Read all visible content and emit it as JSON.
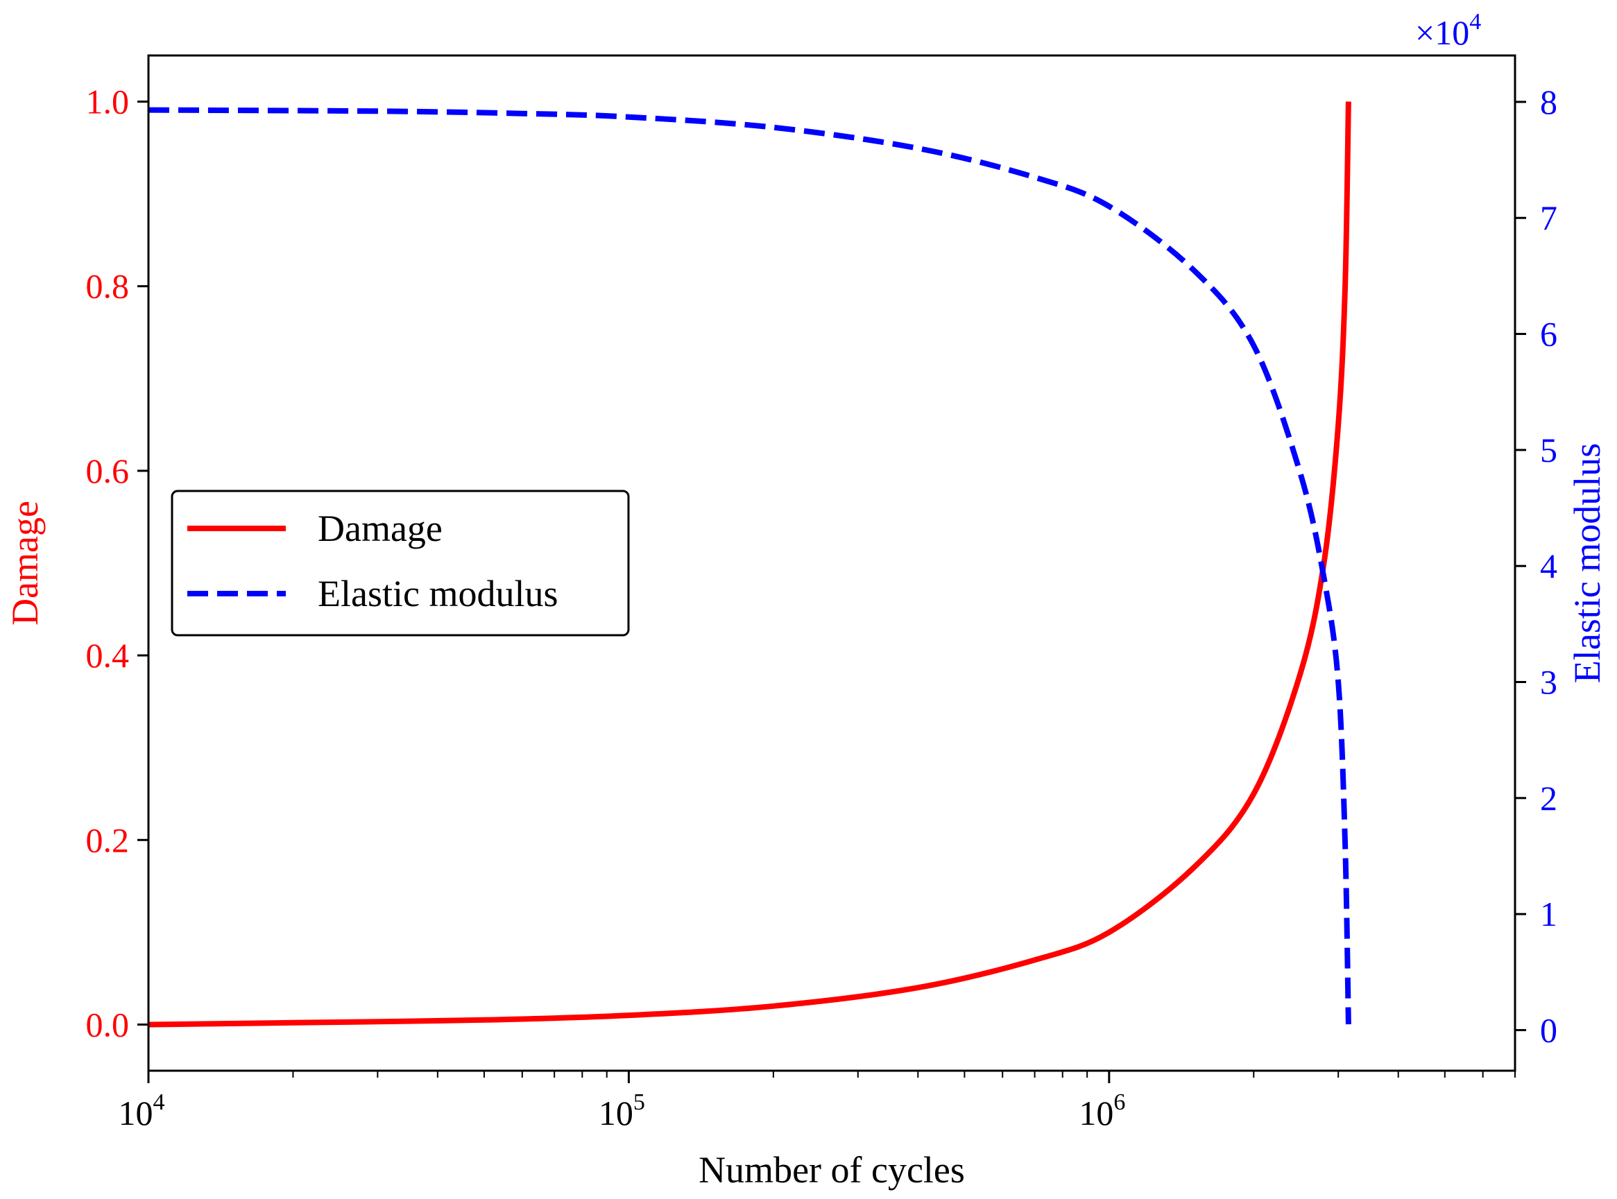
{
  "chart_data": {
    "type": "line",
    "title": "",
    "xlabel": "Number of cycles",
    "ylabel_left": "Damage",
    "ylabel_right": "Elastic modulus",
    "xscale": "log",
    "xlim": [
      10000,
      7000000
    ],
    "ylim_left": [
      -0.05,
      1.05
    ],
    "ylim_right": [
      -0.35,
      8.4
    ],
    "right_axis_multiplier": "×10",
    "right_axis_multiplier_exponent": "4",
    "x_major_ticks": [
      {
        "base": "10",
        "exp": "4",
        "value": 10000
      },
      {
        "base": "10",
        "exp": "5",
        "value": 100000
      },
      {
        "base": "10",
        "exp": "6",
        "value": 1000000
      }
    ],
    "y_left_ticks": [
      "0.0",
      "0.2",
      "0.4",
      "0.6",
      "0.8",
      "1.0"
    ],
    "y_right_ticks": [
      "0",
      "1",
      "2",
      "3",
      "4",
      "5",
      "6",
      "7",
      "8"
    ],
    "legend": {
      "position": "center-left",
      "entries": [
        {
          "label": "Damage",
          "style": "solid",
          "color": "#ff0000"
        },
        {
          "label": "Elastic modulus",
          "style": "dashed",
          "color": "#0000ff"
        }
      ]
    },
    "series": [
      {
        "name": "Damage",
        "axis": "left",
        "color": "#ff0000",
        "style": "solid",
        "x": [
          10000,
          20000,
          50000,
          100000,
          200000,
          400000,
          700000,
          1000000,
          1500000,
          2000000,
          2500000,
          2800000,
          3000000,
          3100000,
          3150000
        ],
        "y": [
          0.0,
          0.002,
          0.005,
          0.01,
          0.02,
          0.04,
          0.07,
          0.1,
          0.17,
          0.25,
          0.38,
          0.5,
          0.65,
          0.8,
          1.0
        ]
      },
      {
        "name": "Elastic modulus",
        "axis": "right",
        "color": "#0000ff",
        "style": "dashed",
        "x": [
          10000,
          30000,
          60000,
          100000,
          200000,
          400000,
          700000,
          1000000,
          1500000,
          2000000,
          2500000,
          2800000,
          3000000,
          3100000,
          3150000
        ],
        "y": [
          7.93,
          7.92,
          7.9,
          7.87,
          7.78,
          7.6,
          7.35,
          7.1,
          6.55,
          5.9,
          4.8,
          3.9,
          3.0,
          1.6,
          0.05
        ]
      }
    ]
  }
}
